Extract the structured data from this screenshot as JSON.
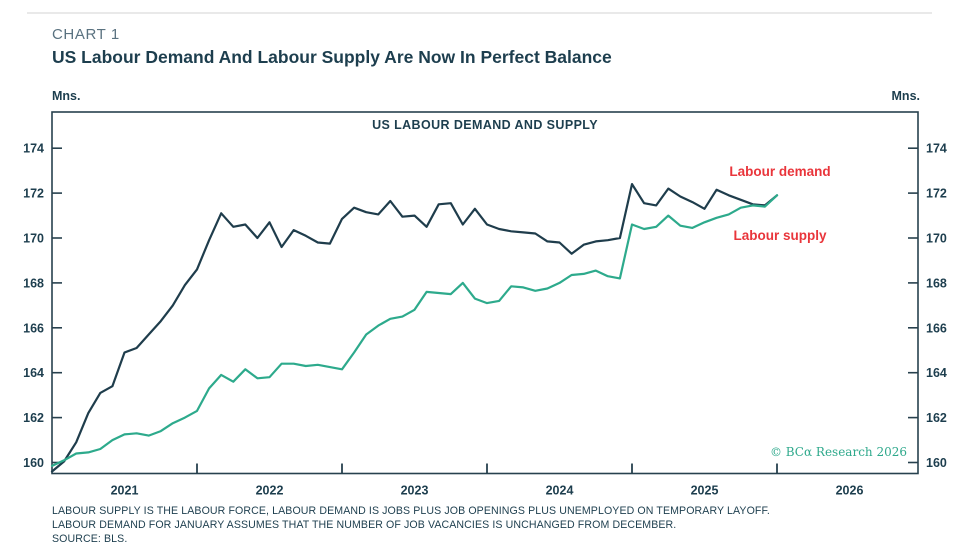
{
  "header": {
    "kicker": "CHART 1",
    "title": "US Labour Demand And Labour Supply Are Now In Perfect Balance"
  },
  "axes": {
    "unit_left": "Mns.",
    "unit_right": "Mns.",
    "y_ticks": [
      160,
      162,
      164,
      166,
      168,
      170,
      172,
      174
    ],
    "x_year_labels": [
      "2021",
      "2022",
      "2023",
      "2024",
      "2025",
      "2026"
    ],
    "grid": "off",
    "axis_color": "#27414e"
  },
  "chart_data": {
    "type": "line",
    "title": "US LABOUR DEMAND AND SUPPLY",
    "frequency": "monthly",
    "x_start": "2021-01",
    "x_end": "2026-01",
    "x_axis_range": [
      "2021-01",
      "2026-12"
    ],
    "ylabel": "Mns.",
    "ylim": [
      159.5,
      175.6
    ],
    "legend_position": "inline-annotations",
    "series": [
      {
        "name": "Labour demand",
        "color": "#1f3d4c",
        "values": [
          159.6,
          160.05,
          160.9,
          162.2,
          163.1,
          163.4,
          164.9,
          165.1,
          165.7,
          166.3,
          167.0,
          167.9,
          168.6,
          169.9,
          171.1,
          170.5,
          170.6,
          170.0,
          170.7,
          169.6,
          170.35,
          170.1,
          169.8,
          169.75,
          170.85,
          171.35,
          171.15,
          171.05,
          171.65,
          170.95,
          171.0,
          170.5,
          171.5,
          171.55,
          170.6,
          171.3,
          170.6,
          170.4,
          170.3,
          170.25,
          170.2,
          169.85,
          169.8,
          169.3,
          169.7,
          169.85,
          169.9,
          170.0,
          172.4,
          171.55,
          171.45,
          172.2,
          171.85,
          171.6,
          171.3,
          172.15,
          171.9,
          171.7,
          171.5,
          171.45,
          171.9
        ]
      },
      {
        "name": "Labour supply",
        "color": "#2daa8c",
        "values": [
          159.85,
          160.1,
          160.4,
          160.45,
          160.6,
          161.0,
          161.25,
          161.3,
          161.2,
          161.4,
          161.75,
          162.0,
          162.3,
          163.3,
          163.9,
          163.6,
          164.15,
          163.75,
          163.8,
          164.4,
          164.4,
          164.3,
          164.35,
          164.25,
          164.15,
          164.9,
          165.7,
          166.1,
          166.4,
          166.5,
          166.8,
          167.6,
          167.55,
          167.5,
          168.0,
          167.3,
          167.1,
          167.2,
          167.85,
          167.8,
          167.65,
          167.75,
          168.0,
          168.35,
          168.4,
          168.55,
          168.3,
          168.2,
          170.6,
          170.4,
          170.5,
          171.0,
          170.55,
          170.45,
          170.7,
          170.9,
          171.05,
          171.35,
          171.45,
          171.4,
          171.9
        ]
      }
    ],
    "annotations": [
      {
        "text": "Labour demand",
        "color": "#e9353b"
      },
      {
        "text": "Labour supply",
        "color": "#e9353b"
      }
    ]
  },
  "footer": {
    "copyright": "© BCα Research 2026",
    "copyright_color": "#2fa98c",
    "lines": [
      "LABOUR SUPPLY IS THE LABOUR FORCE, LABOUR DEMAND IS JOBS PLUS JOB OPENINGS PLUS UNEMPLOYED ON TEMPORARY LAYOFF.",
      "LABOUR DEMAND FOR JANUARY ASSUMES THAT THE NUMBER OF JOB VACANCIES IS UNCHANGED FROM DECEMBER.",
      "SOURCE: BLS."
    ]
  }
}
